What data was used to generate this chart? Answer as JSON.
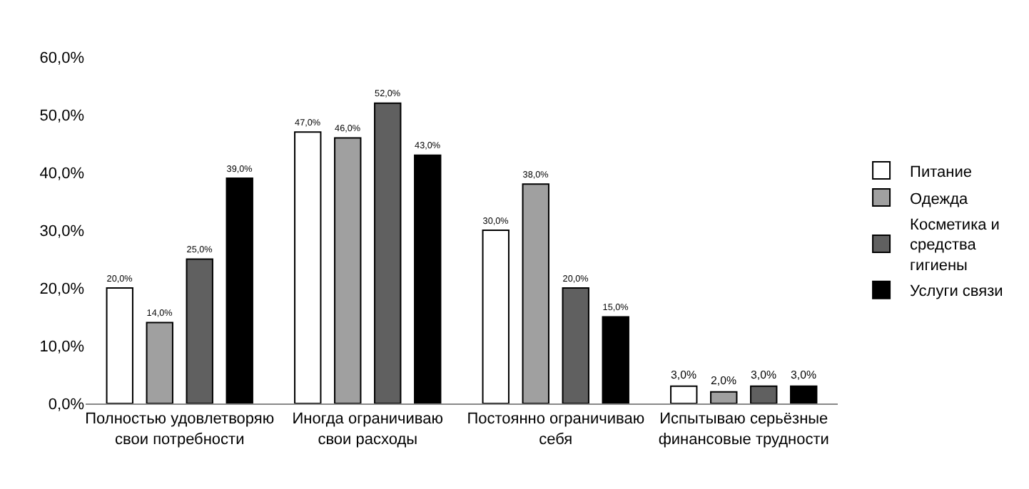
{
  "chart_data": {
    "type": "bar",
    "categories": [
      "Полностью удовлетворяю свои потребности",
      "Иногда ограничиваю свои расходы",
      "Постоянно ограничиваю себя",
      "Испытываю серьёзные финансовые трудности"
    ],
    "series": [
      {
        "name": "Питание",
        "color": "#ffffff",
        "values": [
          20,
          47,
          30,
          3
        ],
        "value_labels": [
          "20,0%",
          "47,0%",
          "30,0%",
          "3,0%"
        ]
      },
      {
        "name": "Одежда",
        "color": "#a0a0a0",
        "values": [
          14,
          46,
          38,
          2
        ],
        "value_labels": [
          "14,0%",
          "46,0%",
          "38,0%",
          "2,0%"
        ]
      },
      {
        "name": "Косметика и средства гигиены",
        "color": "#606060",
        "values": [
          25,
          52,
          20,
          3
        ],
        "value_labels": [
          "25,0%",
          "52,0%",
          "20,0%",
          "3,0%"
        ]
      },
      {
        "name": "Услуги связи",
        "color": "#000000",
        "values": [
          39,
          43,
          15,
          3
        ],
        "value_labels": [
          "39,0%",
          "43,0%",
          "15,0%",
          "3,0%"
        ]
      }
    ],
    "ylim": [
      0,
      60
    ],
    "yticks": [
      {
        "value": 0,
        "label": "0,0%"
      },
      {
        "value": 10,
        "label": "10,0%"
      },
      {
        "value": 20,
        "label": "20,0%"
      },
      {
        "value": 30,
        "label": "30,0%"
      },
      {
        "value": 40,
        "label": "40,0%"
      },
      {
        "value": 50,
        "label": "50,0%"
      },
      {
        "value": 60,
        "label": "60,0%"
      }
    ],
    "grid": false,
    "legend": "right"
  }
}
